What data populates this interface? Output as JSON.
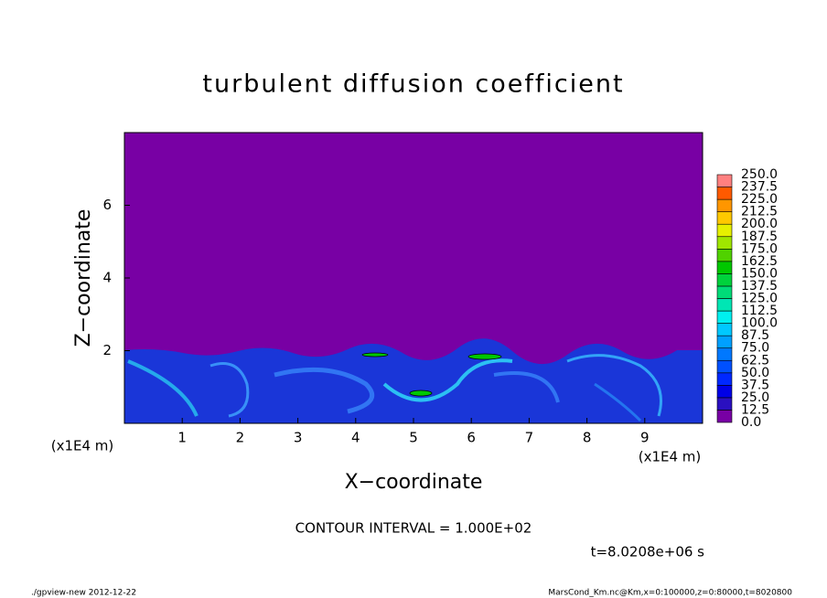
{
  "chart_data": {
    "type": "contour",
    "title": "turbulent diffusion coefficient",
    "xlabel": "X−coordinate",
    "ylabel": "Z−coordinate",
    "x_unit": "(x1E4 m)",
    "y_unit": "(x1E4 m)",
    "xlim": [
      0,
      10
    ],
    "ylim": [
      0,
      8
    ],
    "xticks": [
      1,
      2,
      3,
      4,
      5,
      6,
      7,
      8,
      9
    ],
    "yticks": [
      2,
      4,
      6
    ],
    "colorbar": {
      "ticks": [
        {
          "value": 0,
          "label": "0.0"
        },
        {
          "value": 12.5,
          "label": "12.5"
        },
        {
          "value": 25,
          "label": "25.0"
        },
        {
          "value": 37.5,
          "label": "37.5"
        },
        {
          "value": 50,
          "label": "50.0"
        },
        {
          "value": 62.5,
          "label": "62.5"
        },
        {
          "value": 75,
          "label": "75.0"
        },
        {
          "value": 87.5,
          "label": "87.5"
        },
        {
          "value": 100,
          "label": "100.0"
        },
        {
          "value": 112.5,
          "label": "112.5"
        },
        {
          "value": 125,
          "label": "125.0"
        },
        {
          "value": 137.5,
          "label": "137.5"
        },
        {
          "value": 150,
          "label": "150.0"
        },
        {
          "value": 162.5,
          "label": "162.5"
        },
        {
          "value": 175,
          "label": "175.0"
        },
        {
          "value": 187.5,
          "label": "187.5"
        },
        {
          "value": 200,
          "label": "200.0"
        },
        {
          "value": 212.5,
          "label": "212.5"
        },
        {
          "value": 225,
          "label": "225.0"
        },
        {
          "value": 237.5,
          "label": "237.5"
        },
        {
          "value": 250,
          "label": "250.0"
        }
      ],
      "colors": [
        "#7800a4",
        "#2a10c0",
        "#0000e6",
        "#0028ff",
        "#0050ff",
        "#0078ff",
        "#00a0ff",
        "#00c8ff",
        "#00f0f0",
        "#00e6b4",
        "#00dc78",
        "#00d23c",
        "#00c800",
        "#50d200",
        "#a0e600",
        "#e6f000",
        "#ffc800",
        "#ff9600",
        "#ff5a00",
        "#ff8080"
      ]
    },
    "annotations": [
      "CONTOUR INTERVAL = 1.000E+02",
      "t=8.0208e+06 s"
    ],
    "footer_left": "./gpview-new  2012-12-22",
    "footer_right": "MarsCond_Km.nc@Km,x=0:100000,z=0:80000,t=8020800"
  }
}
